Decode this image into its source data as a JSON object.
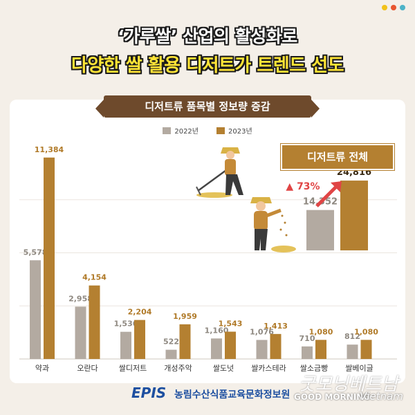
{
  "header": {
    "title_line1": "‘가루쌀’ 산업의 활성화로",
    "title_line2": "다양한 쌀 활용 디저트가 트렌드 선도"
  },
  "colors": {
    "bar_2022": "#b3aaa1",
    "bar_2023": "#b48031",
    "label_2022": "#8e8880",
    "label_2023": "#b07a28",
    "accent_title_yellow": "#ffe436",
    "increase_red": "#e04545",
    "footer_blue": "#1d4fa0"
  },
  "top_dots": [
    "#f2c21a",
    "#e8552f",
    "#4db3c8"
  ],
  "chart_data": {
    "type": "bar",
    "title": "디저트류 품목별 정보량 증감",
    "categories": [
      "약과",
      "오란다",
      "쌀디저트",
      "개성주악",
      "쌀도넛",
      "쌀카스테라",
      "쌀소금빵",
      "쌀베이글"
    ],
    "series": [
      {
        "name": "2022년",
        "values": [
          5578,
          2958,
          1536,
          522,
          1160,
          1076,
          710,
          812
        ],
        "labels": [
          "5,578",
          "2,958",
          "1,536",
          "522",
          "1,160",
          "1,076",
          "710",
          "812"
        ]
      },
      {
        "name": "2023년",
        "values": [
          11384,
          4154,
          2204,
          1959,
          1543,
          1413,
          1080,
          1080
        ],
        "labels": [
          "11,384",
          "4,154",
          "2,204",
          "1,959",
          "1,543",
          "1,413",
          "1,080",
          "1,080"
        ]
      }
    ],
    "ylim": [
      0,
      12000
    ],
    "grid": true,
    "legend_position": "top-center",
    "inset": {
      "title": "디저트류 전체",
      "values": [
        14352,
        24816
      ],
      "labels": [
        "14,352",
        "24,816"
      ],
      "max": 30000,
      "increase_label": "▲ 73%"
    }
  },
  "footer": {
    "logo": "EPIS",
    "org_name": "농림수산식품교육문화정보원"
  },
  "watermark": {
    "script": "굿모닝베트남",
    "brand": "GOOD MORNING",
    "script2": "Vietnam"
  },
  "icons": [
    "farmer-raking-icon",
    "farmer-sowing-icon",
    "arrow-up-icon"
  ]
}
